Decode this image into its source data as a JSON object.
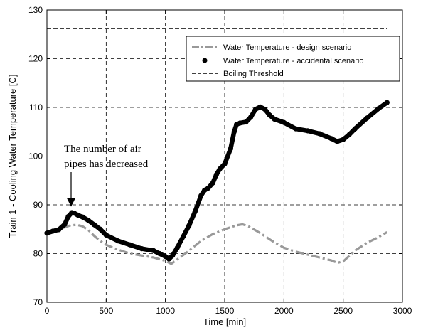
{
  "chart_data": {
    "type": "line",
    "title": "",
    "xlabel": "Time [min]",
    "ylabel": "Train 1 - Cooling Water Temperature [C]",
    "xlim": [
      0,
      3000
    ],
    "ylim": [
      70,
      130
    ],
    "xticks": [
      0,
      500,
      1000,
      1500,
      2000,
      2500,
      3000
    ],
    "yticks": [
      70,
      80,
      90,
      100,
      110,
      120,
      130
    ],
    "xtick_labels": [
      "0",
      "500",
      "1000",
      "1500",
      "2000",
      "2500",
      "3000"
    ],
    "ytick_labels": [
      "70",
      "80",
      "90",
      "100",
      "110",
      "120",
      "130"
    ],
    "grid": true,
    "legend_position": "top-right",
    "series": [
      {
        "name": "Water Temperature - design scenario",
        "style": "dash-dot",
        "color": "#999999",
        "x": [
          0,
          50,
          100,
          150,
          200,
          250,
          300,
          350,
          400,
          450,
          500,
          600,
          700,
          800,
          900,
          1000,
          1050,
          1100,
          1200,
          1300,
          1400,
          1500,
          1600,
          1650,
          1700,
          1800,
          1900,
          2000,
          2100,
          2200,
          2300,
          2400,
          2450,
          2500,
          2600,
          2700,
          2800,
          2870
        ],
        "y": [
          84.2,
          84.6,
          85.0,
          85.4,
          85.8,
          85.9,
          85.6,
          84.8,
          83.6,
          82.6,
          81.8,
          80.8,
          80.0,
          79.6,
          79.2,
          78.5,
          77.9,
          78.8,
          80.6,
          82.6,
          84.0,
          85.0,
          85.8,
          86.0,
          85.6,
          84.2,
          82.6,
          81.2,
          80.4,
          79.8,
          79.2,
          78.6,
          78.1,
          78.4,
          80.6,
          82.2,
          83.4,
          84.4
        ]
      },
      {
        "name": "Water Temperature - accidental scenario",
        "style": "dots",
        "color": "#000000",
        "x": [
          0,
          50,
          100,
          150,
          180,
          210,
          230,
          260,
          300,
          350,
          400,
          450,
          500,
          600,
          700,
          800,
          900,
          950,
          1000,
          1030,
          1060,
          1100,
          1150,
          1200,
          1250,
          1300,
          1330,
          1360,
          1400,
          1430,
          1460,
          1500,
          1550,
          1580,
          1600,
          1630,
          1680,
          1720,
          1760,
          1800,
          1840,
          1880,
          1920,
          2000,
          2100,
          2200,
          2300,
          2400,
          2450,
          2500,
          2550,
          2600,
          2700,
          2800,
          2870
        ],
        "y": [
          84.2,
          84.6,
          84.9,
          86.0,
          87.6,
          88.4,
          88.3,
          87.9,
          87.5,
          86.8,
          85.9,
          85.0,
          83.8,
          82.6,
          81.8,
          81.0,
          80.6,
          80.0,
          79.4,
          78.9,
          79.6,
          81.2,
          83.5,
          85.8,
          88.6,
          91.9,
          93.0,
          93.4,
          94.5,
          96.2,
          97.4,
          98.4,
          101.5,
          105.0,
          106.5,
          106.8,
          107.0,
          108.0,
          109.6,
          110.1,
          109.6,
          108.4,
          107.6,
          106.9,
          105.6,
          105.2,
          104.6,
          103.6,
          103.0,
          103.4,
          104.4,
          105.6,
          107.8,
          109.8,
          111.0
        ]
      },
      {
        "name": "Boiling Threshold",
        "style": "dashed",
        "color": "#000000",
        "x": [
          0,
          2870
        ],
        "y": [
          126.2,
          126.2
        ]
      }
    ],
    "annotations": [
      {
        "lines": [
          "The number  of air",
          "pipes has decreased"
        ],
        "arrow_to": {
          "x": 210,
          "y": 88.3
        }
      }
    ]
  }
}
